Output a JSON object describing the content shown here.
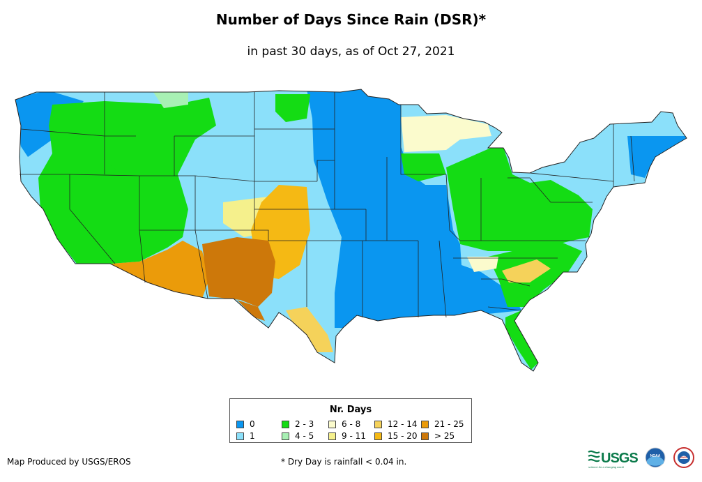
{
  "title": "Number of Days Since Rain (DSR)*",
  "subtitle": "in past 30 days, as of Oct 27, 2021",
  "legend": {
    "title": "Nr. Days",
    "items": [
      {
        "label": "0",
        "color": "#0a96f0"
      },
      {
        "label": "1",
        "color": "#8be0fa"
      },
      {
        "label": "2 - 3",
        "color": "#14dc14"
      },
      {
        "label": "4 - 5",
        "color": "#a8f0b4"
      },
      {
        "label": "6 - 8",
        "color": "#fbfbcd"
      },
      {
        "label": "9 - 11",
        "color": "#f5f08c"
      },
      {
        "label": "12 - 14",
        "color": "#f5d25a"
      },
      {
        "label": "15 - 20",
        "color": "#f5b914"
      },
      {
        "label": "21 - 25",
        "color": "#eb9b0a"
      },
      {
        "label": "> 25",
        "color": "#cd780a"
      }
    ]
  },
  "footer": {
    "producer": "Map Produced by USGS/EROS",
    "note": "* Dry Day is rainfall < 0.04 in."
  },
  "logos": {
    "usgs": "USGS",
    "usgs_tagline": "science for a changing world",
    "noaa": "NOAA",
    "nws": "NWS"
  }
}
